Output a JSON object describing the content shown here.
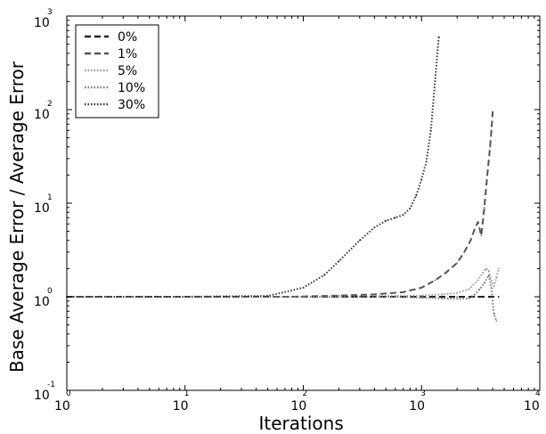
{
  "chart_data": {
    "type": "line",
    "xlabel": "Iterations",
    "ylabel": "Base Average Error / Average Error",
    "xscale": "log",
    "yscale": "log",
    "xlim": [
      1,
      10000
    ],
    "ylim": [
      0.1,
      1000
    ],
    "x_ticks": [
      {
        "base": "10",
        "exp": "0"
      },
      {
        "base": "10",
        "exp": "1"
      },
      {
        "base": "10",
        "exp": "2"
      },
      {
        "base": "10",
        "exp": "3"
      },
      {
        "base": "10",
        "exp": "4"
      }
    ],
    "y_ticks": [
      {
        "base": "10",
        "exp": "-1"
      },
      {
        "base": "10",
        "exp": "0"
      },
      {
        "base": "10",
        "exp": "1"
      },
      {
        "base": "10",
        "exp": "2"
      },
      {
        "base": "10",
        "exp": "3"
      }
    ],
    "legend_position": "top-left",
    "series": [
      {
        "name": "0%",
        "color": "#222222",
        "style": "dashed",
        "x": [
          1,
          10,
          100,
          500,
          1000,
          2000,
          3000,
          4000,
          4500
        ],
        "y": [
          1.0,
          1.0,
          1.0,
          1.0,
          1.0,
          1.0,
          1.0,
          1.0,
          1.0
        ]
      },
      {
        "name": "1%",
        "color": "#555555",
        "style": "dashed",
        "x": [
          1,
          10,
          80,
          200,
          400,
          700,
          1000,
          1300,
          1600,
          2000,
          2300,
          2600,
          2800,
          3000,
          3200,
          3400,
          3600,
          3800,
          3900,
          4000
        ],
        "y": [
          1.0,
          1.0,
          1.0,
          1.03,
          1.06,
          1.12,
          1.25,
          1.5,
          1.8,
          2.3,
          3.0,
          4.0,
          5.2,
          6.3,
          4.5,
          9.0,
          20,
          40,
          60,
          95
        ]
      },
      {
        "name": "5%",
        "color": "#999999",
        "style": "dotted",
        "x": [
          1,
          10,
          100,
          300,
          600,
          1000,
          1500,
          2000,
          2500,
          3000,
          3300,
          3500,
          3700,
          3900,
          4100,
          4300,
          4500
        ],
        "y": [
          1.0,
          1.0,
          1.0,
          1.01,
          1.02,
          1.03,
          1.06,
          1.1,
          1.2,
          1.5,
          1.8,
          2.0,
          1.9,
          1.5,
          1.3,
          1.6,
          2.0
        ]
      },
      {
        "name": "10%",
        "color": "#777777",
        "style": "dotted",
        "x": [
          1,
          10,
          100,
          300,
          600,
          1000,
          1500,
          2000,
          2500,
          2800,
          3100,
          3400,
          3700,
          3900,
          4100,
          4300
        ],
        "y": [
          1.0,
          1.0,
          1.0,
          1.0,
          1.0,
          0.98,
          0.96,
          0.95,
          0.96,
          1.05,
          1.2,
          1.4,
          1.7,
          1.25,
          0.65,
          0.55
        ]
      },
      {
        "name": "30%",
        "color": "#333333",
        "style": "dotted",
        "x": [
          1,
          10,
          50,
          100,
          150,
          200,
          300,
          400,
          500,
          600,
          700,
          800,
          900,
          1000,
          1100,
          1200,
          1300,
          1400
        ],
        "y": [
          1.0,
          1.0,
          1.02,
          1.25,
          1.7,
          2.4,
          4.0,
          5.5,
          6.5,
          7.0,
          7.5,
          8.8,
          12,
          18,
          28,
          60,
          200,
          600
        ]
      }
    ]
  }
}
